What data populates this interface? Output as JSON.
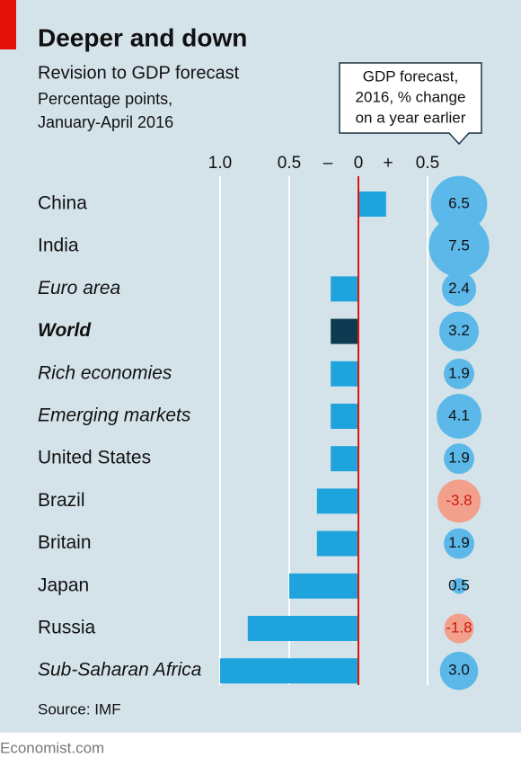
{
  "chart_data": {
    "type": "bar",
    "title": "Deeper and down",
    "subtitle": "Revision to GDP forecast",
    "axis_label_lines": [
      "Percentage points,",
      "January-April 2016"
    ],
    "sign_labels": [
      "–",
      "+"
    ],
    "categories": [
      "China",
      "India",
      "Euro area",
      "World",
      "Rich economies",
      "Emerging markets",
      "United States",
      "Brazil",
      "Britain",
      "Japan",
      "Russia",
      "Sub-Saharan Africa"
    ],
    "italic": [
      false,
      false,
      true,
      true,
      true,
      true,
      false,
      false,
      false,
      false,
      false,
      true
    ],
    "bold": [
      false,
      false,
      false,
      true,
      false,
      false,
      false,
      false,
      false,
      false,
      false,
      false
    ],
    "values": [
      0.2,
      0,
      -0.2,
      -0.2,
      -0.2,
      -0.2,
      -0.2,
      -0.3,
      -0.3,
      -0.5,
      -0.8,
      -1.0
    ],
    "colors": [
      "#1fa3dc",
      "#1fa3dc",
      "#1fa3dc",
      "#0e3b52",
      "#1fa3dc",
      "#1fa3dc",
      "#1fa3dc",
      "#1fa3dc",
      "#1fa3dc",
      "#1fa3dc",
      "#1fa3dc",
      "#1fa3dc"
    ],
    "xlim": [
      -1.0,
      0.5
    ],
    "xticks": [
      {
        "value": -1.0,
        "label": "1.0"
      },
      {
        "value": -0.5,
        "label": "0.5"
      },
      0,
      0.5
    ],
    "grid": true,
    "bubble": {
      "title_lines": [
        "GDP forecast,",
        "2016, % change",
        "on a year earlier"
      ],
      "values": [
        6.5,
        7.5,
        2.4,
        3.2,
        1.9,
        4.1,
        1.9,
        -3.8,
        1.9,
        0.5,
        -1.8,
        3.0
      ],
      "value_labels": [
        "6.5",
        "7.5",
        "2.4",
        "3.2",
        "1.9",
        "4.1",
        "1.9",
        "-3.8",
        "1.9",
        "0.5",
        "-1.8",
        "3.0"
      ],
      "positive_color": "#5bb8e8",
      "negative_color": "#f2a08c"
    },
    "source": "Source: IMF",
    "footer": "Economist.com"
  }
}
